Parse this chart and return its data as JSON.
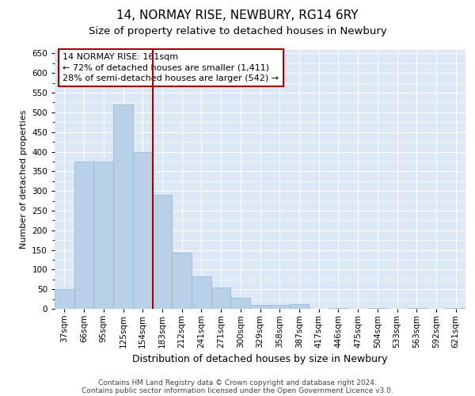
{
  "title1": "14, NORMAY RISE, NEWBURY, RG14 6RY",
  "title2": "Size of property relative to detached houses in Newbury",
  "xlabel": "Distribution of detached houses by size in Newbury",
  "ylabel": "Number of detached properties",
  "categories": [
    "37sqm",
    "66sqm",
    "95sqm",
    "125sqm",
    "154sqm",
    "183sqm",
    "212sqm",
    "241sqm",
    "271sqm",
    "300sqm",
    "329sqm",
    "358sqm",
    "387sqm",
    "417sqm",
    "446sqm",
    "475sqm",
    "504sqm",
    "533sqm",
    "563sqm",
    "592sqm",
    "621sqm"
  ],
  "values": [
    50,
    375,
    375,
    520,
    400,
    290,
    143,
    82,
    55,
    28,
    10,
    10,
    12,
    0,
    3,
    0,
    3,
    0,
    3,
    0,
    3
  ],
  "bar_color": "#b8d0e8",
  "bar_edge_color": "#90b4d4",
  "vline_color": "#aa0000",
  "annotation_text": "14 NORMAY RISE: 161sqm\n← 72% of detached houses are smaller (1,411)\n28% of semi-detached houses are larger (542) →",
  "annotation_box_color": "#ffffff",
  "annotation_box_edge_color": "#aa0000",
  "bg_color": "#ffffff",
  "plot_bg_color": "#dce8f5",
  "grid_color": "#ffffff",
  "ylim": [
    0,
    660
  ],
  "yticks": [
    0,
    50,
    100,
    150,
    200,
    250,
    300,
    350,
    400,
    450,
    500,
    550,
    600,
    650
  ],
  "footnote_line1": "Contains HM Land Registry data © Crown copyright and database right 2024.",
  "footnote_line2": "Contains public sector information licensed under the Open Government Licence v3.0.",
  "title1_fontsize": 11,
  "title2_fontsize": 9.5,
  "xlabel_fontsize": 9,
  "ylabel_fontsize": 8,
  "tick_fontsize": 7.5,
  "annot_fontsize": 8,
  "footnote_fontsize": 6.5
}
